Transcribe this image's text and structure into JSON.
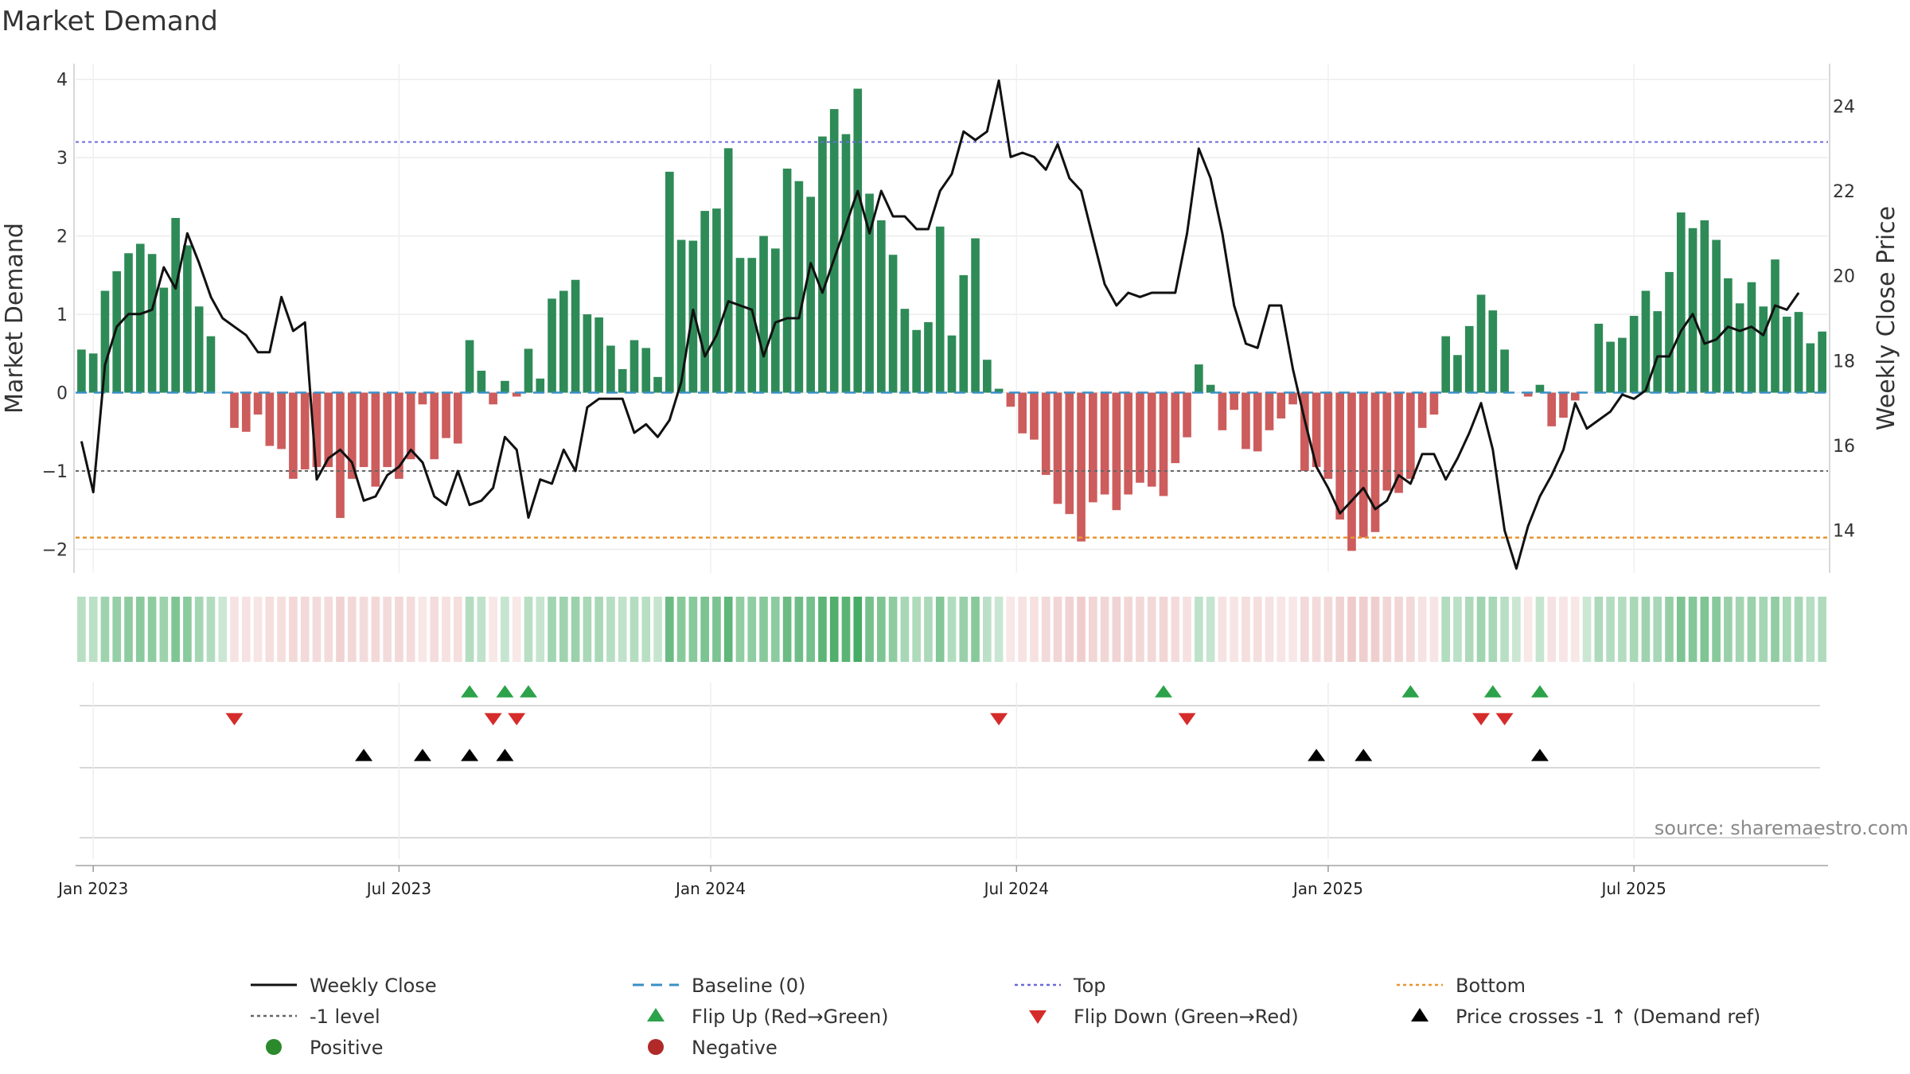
{
  "chart_data": {
    "type": "bar",
    "title": "Market Demand",
    "ylabel_left": "Market Demand",
    "ylabel_right": "Weekly Close Price",
    "ylim_left": [
      -2.3,
      4.2
    ],
    "ylim_right": [
      13,
      25
    ],
    "left_ticks": [
      {
        "value": 4,
        "label": "4"
      },
      {
        "value": 3,
        "label": "3"
      },
      {
        "value": 2,
        "label": "2"
      },
      {
        "value": 1,
        "label": "1"
      },
      {
        "value": 0,
        "label": "0"
      },
      {
        "value": -1,
        "label": "−1"
      },
      {
        "value": -2,
        "label": "−2"
      }
    ],
    "right_ticks": [
      {
        "value": 24,
        "label": "24"
      },
      {
        "value": 22,
        "label": "22"
      },
      {
        "value": 20,
        "label": "20"
      },
      {
        "value": 18,
        "label": "18"
      },
      {
        "value": 16,
        "label": "16"
      },
      {
        "value": 14,
        "label": "14"
      }
    ],
    "x_ticks": [
      {
        "week": 1,
        "label": "Jan 2023"
      },
      {
        "week": 27,
        "label": "Jul 2023"
      },
      {
        "week": 53.5,
        "label": "Jan 2024"
      },
      {
        "week": 79.5,
        "label": "Jul 2024"
      },
      {
        "week": 106,
        "label": "Jan 2025"
      },
      {
        "week": 132,
        "label": "Jul 2025"
      }
    ],
    "reference_lines": {
      "top": 3.2,
      "bottom": -1.85,
      "minus_one_level": -1,
      "baseline": 0
    },
    "demand": [
      0.55,
      0.5,
      1.3,
      1.55,
      1.78,
      1.9,
      1.77,
      1.34,
      2.23,
      1.88,
      1.1,
      0.72,
      0,
      -0.45,
      -0.5,
      -0.28,
      -0.68,
      -0.72,
      -1.1,
      -0.98,
      -0.95,
      -0.95,
      -1.6,
      -1.1,
      -0.95,
      -1.2,
      -0.95,
      -1.1,
      -0.85,
      -0.15,
      -0.85,
      -0.58,
      -0.65,
      0.67,
      0.28,
      -0.15,
      0.15,
      -0.05,
      0.56,
      0.18,
      1.2,
      1.3,
      1.44,
      1.0,
      0.96,
      0.6,
      0.3,
      0.67,
      0.57,
      0.2,
      2.82,
      1.95,
      1.94,
      2.32,
      2.35,
      3.12,
      1.72,
      1.72,
      2.0,
      1.84,
      2.86,
      2.7,
      2.5,
      3.27,
      3.62,
      3.3,
      3.88,
      2.54,
      2.2,
      1.76,
      1.07,
      0.8,
      0.9,
      2.12,
      0.73,
      1.5,
      1.97,
      0.42,
      0.05,
      -0.18,
      -0.52,
      -0.6,
      -1.05,
      -1.42,
      -1.55,
      -1.9,
      -1.4,
      -1.3,
      -1.5,
      -1.3,
      -1.15,
      -1.2,
      -1.32,
      -0.9,
      -0.57,
      0.36,
      0.1,
      -0.48,
      -0.22,
      -0.72,
      -0.75,
      -0.48,
      -0.33,
      -0.15,
      -1.0,
      -0.95,
      -1.1,
      -1.62,
      -2.02,
      -1.85,
      -1.78,
      -1.25,
      -1.28,
      -1.1,
      -0.45,
      -0.28,
      0.72,
      0.48,
      0.85,
      1.25,
      1.05,
      0.55,
      0,
      -0.05,
      0.1,
      -0.43,
      -0.32,
      -0.1,
      0,
      0.88,
      0.65,
      0.7,
      0.98,
      1.3,
      1.04,
      1.54,
      2.3,
      2.1,
      2.2,
      1.95,
      1.46,
      1.14,
      1.41,
      1.1,
      1.7,
      0.97,
      1.03,
      0.63,
      0.78
    ],
    "weekly_close": [
      16.1,
      14.9,
      17.9,
      18.8,
      19.1,
      19.1,
      19.2,
      20.2,
      19.7,
      21.0,
      20.3,
      19.5,
      19.0,
      18.8,
      18.6,
      18.2,
      18.2,
      19.5,
      18.7,
      18.9,
      15.2,
      15.7,
      15.9,
      15.6,
      14.7,
      14.8,
      15.3,
      15.5,
      15.9,
      15.6,
      14.8,
      14.6,
      15.4,
      14.6,
      14.7,
      15.0,
      16.2,
      15.9,
      14.3,
      15.2,
      15.1,
      15.9,
      15.4,
      16.9,
      17.1,
      17.1,
      17.1,
      16.3,
      16.5,
      16.2,
      16.6,
      17.5,
      19.2,
      18.1,
      18.6,
      19.4,
      19.3,
      19.2,
      18.1,
      18.9,
      19.0,
      19.0,
      20.3,
      19.6,
      20.4,
      21.2,
      22.0,
      21.0,
      22.0,
      21.4,
      21.4,
      21.1,
      21.1,
      22.0,
      22.4,
      23.4,
      23.2,
      23.4,
      24.6,
      22.8,
      22.9,
      22.8,
      22.5,
      23.1,
      22.3,
      22.0,
      20.9,
      19.8,
      19.3,
      19.6,
      19.5,
      19.6,
      19.6,
      19.6,
      21.0,
      23.0,
      22.3,
      21.0,
      19.3,
      18.4,
      18.3,
      19.3,
      19.3,
      17.8,
      16.6,
      15.5,
      15.0,
      14.4,
      14.7,
      15.0,
      14.5,
      14.7,
      15.3,
      15.1,
      15.8,
      15.8,
      15.2,
      15.7,
      16.3,
      17.0,
      15.9,
      14.0,
      13.1,
      14.1,
      14.8,
      15.3,
      15.9,
      17.0,
      16.4,
      16.6,
      16.8,
      17.2,
      17.1,
      17.3,
      18.1,
      18.1,
      18.7,
      19.1,
      18.4,
      18.5,
      18.8,
      18.7,
      18.8,
      18.6,
      19.3,
      19.2,
      19.6
    ],
    "flip_up_weeks": [
      33,
      36,
      38,
      92,
      113,
      120,
      124
    ],
    "flip_down_weeks": [
      13,
      35,
      37,
      78,
      94,
      119,
      121
    ],
    "price_cross_weeks": [
      24,
      29,
      33,
      36,
      105,
      109,
      124
    ],
    "source_note": "source: sharemaestro.com",
    "legend": [
      {
        "label": "Weekly Close",
        "symbol": "line",
        "color": "#111111"
      },
      {
        "label": "Baseline (0)",
        "symbol": "dash",
        "color": "#3a8fc7"
      },
      {
        "label": "Top",
        "symbol": "dot",
        "color": "#6a6ad8"
      },
      {
        "label": "Bottom",
        "symbol": "dot",
        "color": "#e8952e"
      },
      {
        "label": "-1 level",
        "symbol": "dot",
        "color": "#666666"
      },
      {
        "label": "Flip Up (Red→Green)",
        "symbol": "tri-up",
        "color": "#2ca24a"
      },
      {
        "label": "Flip Down (Green→Red)",
        "symbol": "tri-down",
        "color": "#d62b2b"
      },
      {
        "label": "Price crosses -1 ↑ (Demand ref)",
        "symbol": "tri-up",
        "color": "#000000"
      },
      {
        "label": "Positive",
        "symbol": "circle",
        "color": "#2b8a2b"
      },
      {
        "label": "Negative",
        "symbol": "circle",
        "color": "#b02a2a"
      }
    ]
  },
  "colors": {
    "positive_bar": "#2e8b57",
    "negative_bar": "#cd5c5c"
  }
}
